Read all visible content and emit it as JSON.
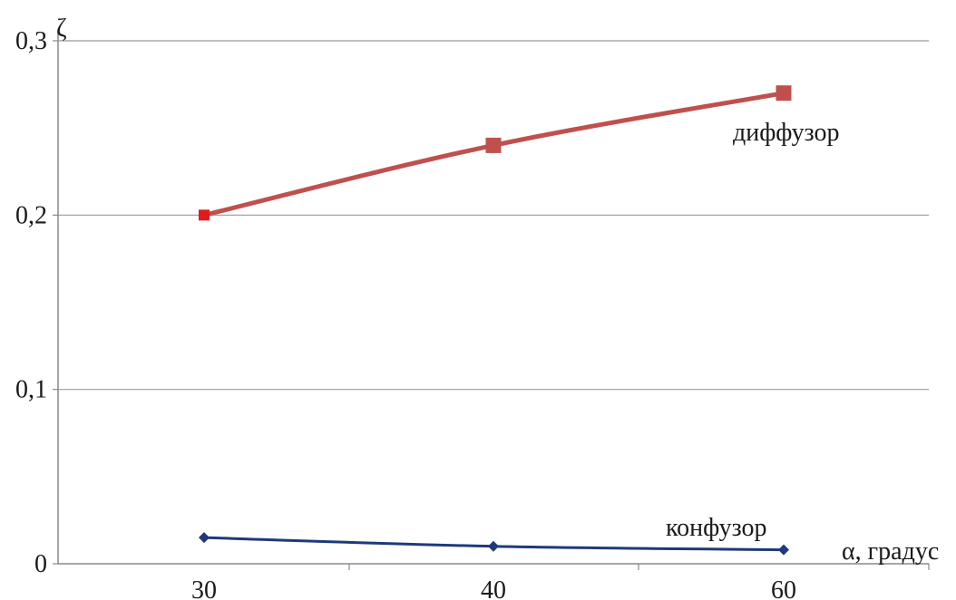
{
  "chart_data": {
    "type": "line",
    "categories": [
      "30",
      "40",
      "60"
    ],
    "xlabel": "α, градус",
    "ylabel": "ζ",
    "ylim": [
      0,
      0.3
    ],
    "yticks": [
      "0",
      "0,1",
      "0,2",
      "0,3"
    ],
    "grid": true,
    "series": [
      {
        "name": "диффузор",
        "values": [
          0.2,
          0.24,
          0.27
        ],
        "color": "#c0504d",
        "marker_color": "#c0504d",
        "first_marker_color": "#e31a1c"
      },
      {
        "name": "конфузор",
        "values": [
          0.015,
          0.01,
          0.008
        ],
        "color": "#1f3a7a",
        "marker_color": "#1f3a7a"
      }
    ]
  }
}
